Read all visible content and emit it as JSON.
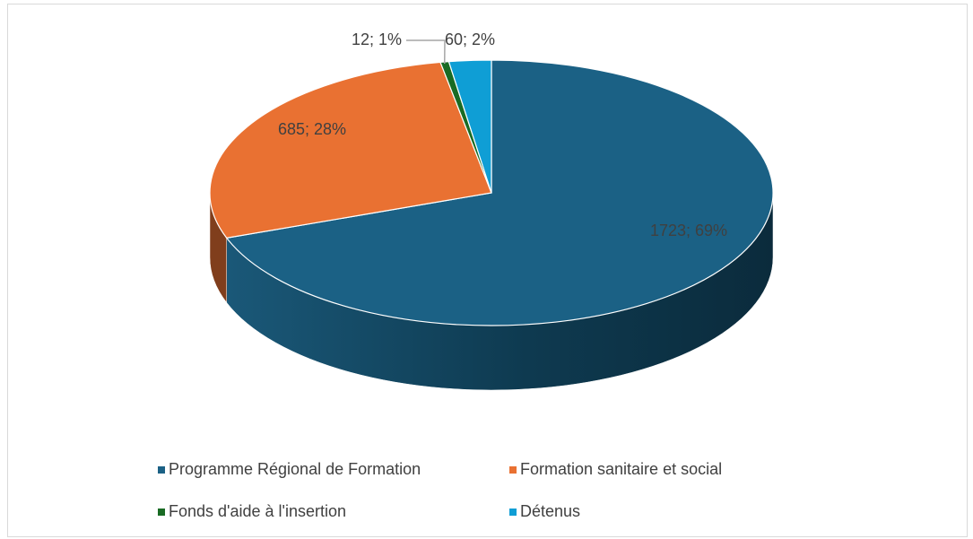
{
  "chart_data": {
    "type": "pie",
    "categories": [
      "Programme Régional de Formation",
      "Formation sanitaire et social",
      "Fonds d'aide à l'insertion",
      "Détenus"
    ],
    "values": [
      1723,
      685,
      12,
      60
    ],
    "value_labels": [
      "1723; 69%",
      "685; 28%",
      "12; 1%",
      "60; 2%"
    ],
    "colors": [
      "#1b6185",
      "#e97132",
      "#196b24",
      "#0f9ed5"
    ],
    "legend": "bottom"
  }
}
